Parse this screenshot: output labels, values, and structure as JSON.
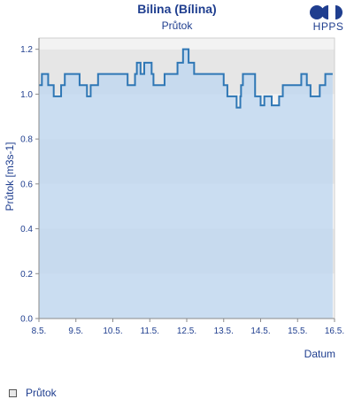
{
  "header": {
    "title": "Bilina (Bílina)",
    "subtitle": "Průtok",
    "logo_text": "HPPS"
  },
  "legend": {
    "label": "Průtok"
  },
  "colors": {
    "text": "#1f3e8f",
    "line": "#2f77b5",
    "fill": "#bcd6f0",
    "band_light": "#f3f3f3",
    "band_dark": "#e6e6e6"
  },
  "chart_data": {
    "type": "area",
    "title": "Bilina (Bílina)",
    "subtitle": "Průtok",
    "xlabel": "Datum",
    "ylabel": "Průtok [m3s-1]",
    "xlim": [
      8.5,
      16.5
    ],
    "ylim": [
      0,
      1.25
    ],
    "x_tick_values": [
      8.5,
      9.5,
      10.5,
      11.5,
      12.5,
      13.5,
      14.5,
      15.5,
      16.5
    ],
    "x_tick_labels": [
      "8.5.",
      "9.5.",
      "10.5.",
      "11.5.",
      "12.5.",
      "13.5.",
      "14.5.",
      "15.5.",
      "16.5."
    ],
    "y_tick_values": [
      0,
      0.2,
      0.4,
      0.6,
      0.8,
      1.0,
      1.2
    ],
    "y_tick_labels": [
      "0.0",
      "0.2",
      "0.4",
      "0.6",
      "0.8",
      "1.0",
      "1.2"
    ],
    "grid": true,
    "legend_position": "bottom-left",
    "series": [
      {
        "name": "Průtok",
        "x": [
          8.5,
          8.58,
          8.62,
          8.75,
          8.9,
          9.1,
          9.2,
          9.3,
          9.5,
          9.6,
          9.8,
          9.9,
          10.1,
          10.3,
          10.5,
          10.7,
          10.9,
          11.1,
          11.15,
          11.25,
          11.35,
          11.55,
          11.6,
          11.75,
          11.9,
          12.1,
          12.25,
          12.4,
          12.55,
          12.7,
          12.9,
          13.1,
          13.3,
          13.5,
          13.6,
          13.75,
          13.85,
          13.95,
          13.97,
          14.02,
          14.06,
          14.15,
          14.35,
          14.45,
          14.5,
          14.6,
          14.8,
          15.0,
          15.1,
          15.3,
          15.5,
          15.6,
          15.75,
          15.85,
          16.0,
          16.1,
          16.25,
          16.35,
          16.45
        ],
        "y": [
          1.04,
          1.09,
          1.09,
          1.04,
          0.99,
          1.04,
          1.09,
          1.09,
          1.09,
          1.04,
          0.99,
          1.04,
          1.09,
          1.09,
          1.09,
          1.09,
          1.04,
          1.09,
          1.14,
          1.09,
          1.14,
          1.09,
          1.04,
          1.04,
          1.09,
          1.09,
          1.14,
          1.2,
          1.14,
          1.09,
          1.09,
          1.09,
          1.09,
          1.04,
          0.99,
          0.99,
          0.94,
          0.99,
          1.04,
          1.09,
          1.09,
          1.09,
          0.99,
          0.99,
          0.95,
          0.99,
          0.95,
          0.99,
          1.04,
          1.04,
          1.04,
          1.09,
          1.04,
          0.99,
          0.99,
          1.04,
          1.09,
          1.09,
          1.09
        ]
      }
    ]
  }
}
